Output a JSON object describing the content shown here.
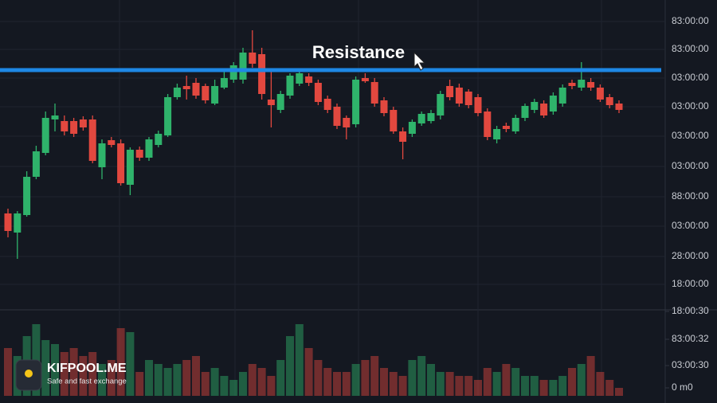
{
  "chart_data": {
    "type": "candlestick",
    "ylim": [
      0,
      390
    ],
    "yticks": [
      {
        "value": 363,
        "label": "83:00:00"
      },
      {
        "value": 328,
        "label": "83:00:00"
      },
      {
        "value": 292,
        "label": "03:00:00"
      },
      {
        "value": 256,
        "label": "03:00:00"
      },
      {
        "value": 219,
        "label": "03:00:00"
      },
      {
        "value": 181,
        "label": "03:00:00"
      },
      {
        "value": 143,
        "label": "88:00:00"
      },
      {
        "value": 106,
        "label": "03:00:00"
      },
      {
        "value": 68,
        "label": "28:00:00"
      },
      {
        "value": 33,
        "label": "18:00:00"
      }
    ],
    "y2lim": [
      0,
      110
    ],
    "y2ticks": [
      {
        "value": 106,
        "label": "18:00:30"
      },
      {
        "value": 71,
        "label": "83:00:32"
      },
      {
        "value": 38,
        "label": "03:00:30"
      },
      {
        "value": 10,
        "label": "0 m0"
      }
    ],
    "up_color": "#2fb36b",
    "down_color": "#e2483f",
    "resistance_color": "#1e88e5",
    "resistance": {
      "label": "Resistance",
      "value": 302
    },
    "open": [
      122,
      98,
      120,
      168,
      198,
      240,
      238,
      238,
      240,
      240,
      180,
      214,
      210,
      158,
      202,
      192,
      208,
      220,
      268,
      282,
      286,
      282,
      260,
      280,
      290,
      290,
      324,
      322,
      265,
      252,
      270,
      285,
      294,
      286,
      266,
      256,
      242,
      234,
      292,
      287,
      264,
      252,
      225,
      222,
      235,
      238,
      245,
      282,
      280,
      275,
      268,
      250,
      215,
      232,
      225,
      242,
      252,
      260,
      250,
      260,
      286,
      280,
      287,
      280,
      268,
      260
    ],
    "high": [
      128,
      125,
      175,
      207,
      250,
      260,
      245,
      242,
      244,
      245,
      215,
      218,
      215,
      205,
      206,
      218,
      226,
      272,
      285,
      295,
      292,
      285,
      290,
      300,
      312,
      330,
      352,
      330,
      300,
      276,
      298,
      302,
      298,
      290,
      270,
      260,
      245,
      294,
      298,
      292,
      268,
      256,
      230,
      240,
      250,
      252,
      276,
      290,
      285,
      278,
      272,
      254,
      232,
      236,
      246,
      260,
      266,
      264,
      274,
      284,
      290,
      312,
      292,
      284,
      272,
      264
    ],
    "low": [
      92,
      65,
      118,
      165,
      195,
      225,
      220,
      218,
      226,
      185,
      165,
      205,
      157,
      145,
      188,
      188,
      205,
      218,
      265,
      265,
      266,
      260,
      258,
      278,
      286,
      285,
      305,
      265,
      230,
      248,
      266,
      282,
      282,
      258,
      248,
      228,
      215,
      230,
      286,
      256,
      244,
      222,
      190,
      218,
      232,
      235,
      240,
      264,
      256,
      254,
      244,
      214,
      210,
      224,
      222,
      238,
      248,
      242,
      246,
      256,
      278,
      276,
      276,
      262,
      254,
      248
    ],
    "close": [
      100,
      122,
      168,
      200,
      242,
      245,
      225,
      222,
      230,
      188,
      210,
      208,
      160,
      202,
      192,
      215,
      222,
      268,
      280,
      278,
      270,
      264,
      282,
      292,
      308,
      324,
      310,
      272,
      258,
      272,
      295,
      298,
      286,
      262,
      252,
      232,
      230,
      290,
      288,
      260,
      248,
      225,
      212,
      237,
      247,
      248,
      272,
      268,
      260,
      258,
      248,
      218,
      228,
      228,
      242,
      257,
      262,
      245,
      270,
      280,
      282,
      290,
      280,
      265,
      258,
      252
    ],
    "volume": [
      60,
      50,
      75,
      90,
      70,
      65,
      55,
      60,
      50,
      55,
      40,
      45,
      85,
      80,
      30,
      45,
      40,
      35,
      40,
      45,
      50,
      30,
      35,
      25,
      20,
      30,
      40,
      35,
      25,
      45,
      75,
      90,
      60,
      45,
      35,
      30,
      30,
      40,
      45,
      50,
      35,
      30,
      25,
      45,
      50,
      40,
      30,
      30,
      25,
      25,
      20,
      35,
      30,
      40,
      35,
      25,
      25,
      20,
      20,
      25,
      35,
      40,
      50,
      30,
      20,
      10
    ]
  },
  "brand": {
    "name": "KIFPOOL.ME",
    "tagline": "Safe and fast exchange"
  }
}
